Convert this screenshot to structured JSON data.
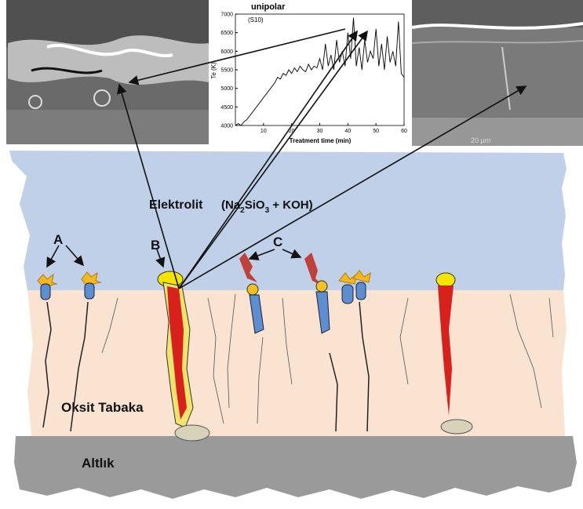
{
  "labels": {
    "electrolyte": "Elektrolit",
    "formula": [
      "(Na",
      "2",
      "SiO",
      "3",
      " + KOH)"
    ],
    "marker_a": "A",
    "marker_b": "B",
    "marker_c": "C",
    "oxide": "Oksit Tabaka",
    "substrate": "Altlık",
    "scale_bar": "20 µm"
  },
  "inset": {
    "title": "unipolar",
    "subtitle": "(S10)",
    "x_label": "Treatment time (min)",
    "y_label": "Te (K)",
    "xlim": [
      0,
      60
    ],
    "ylim": [
      4000,
      7000
    ],
    "xticks": [
      10,
      20,
      30,
      40,
      50,
      60
    ],
    "yticks": [
      4000,
      4500,
      5000,
      5500,
      6000,
      6500,
      7000
    ],
    "x": [
      0,
      1,
      2,
      3,
      4,
      5,
      6,
      7,
      8,
      9,
      10,
      11,
      12,
      13,
      14,
      15,
      16,
      17,
      18,
      19,
      20,
      21,
      22,
      23,
      24,
      25,
      26,
      27,
      28,
      29,
      30,
      31,
      32,
      33,
      34,
      35,
      36,
      37,
      38,
      39,
      40,
      41,
      42,
      43,
      44,
      45,
      46,
      47,
      48,
      49,
      50,
      51,
      52,
      53,
      54,
      55,
      56,
      57,
      58,
      59,
      60
    ],
    "values": [
      4000,
      4050,
      4000,
      4100,
      4150,
      4250,
      4350,
      4450,
      4550,
      4650,
      4750,
      4850,
      4950,
      5050,
      5150,
      5300,
      5250,
      5400,
      5350,
      5500,
      5400,
      5550,
      5450,
      5600,
      5500,
      5450,
      5650,
      5500,
      5600,
      5550,
      5800,
      5500,
      6200,
      5600,
      5900,
      5500,
      6300,
      5700,
      6000,
      5600,
      6500,
      5800,
      6900,
      5600,
      6100,
      5500,
      6300,
      5700,
      6000,
      5800,
      6600,
      5600,
      6200,
      5500,
      6400,
      5700,
      6000,
      5600,
      6800,
      5400,
      5300
    ]
  }
}
